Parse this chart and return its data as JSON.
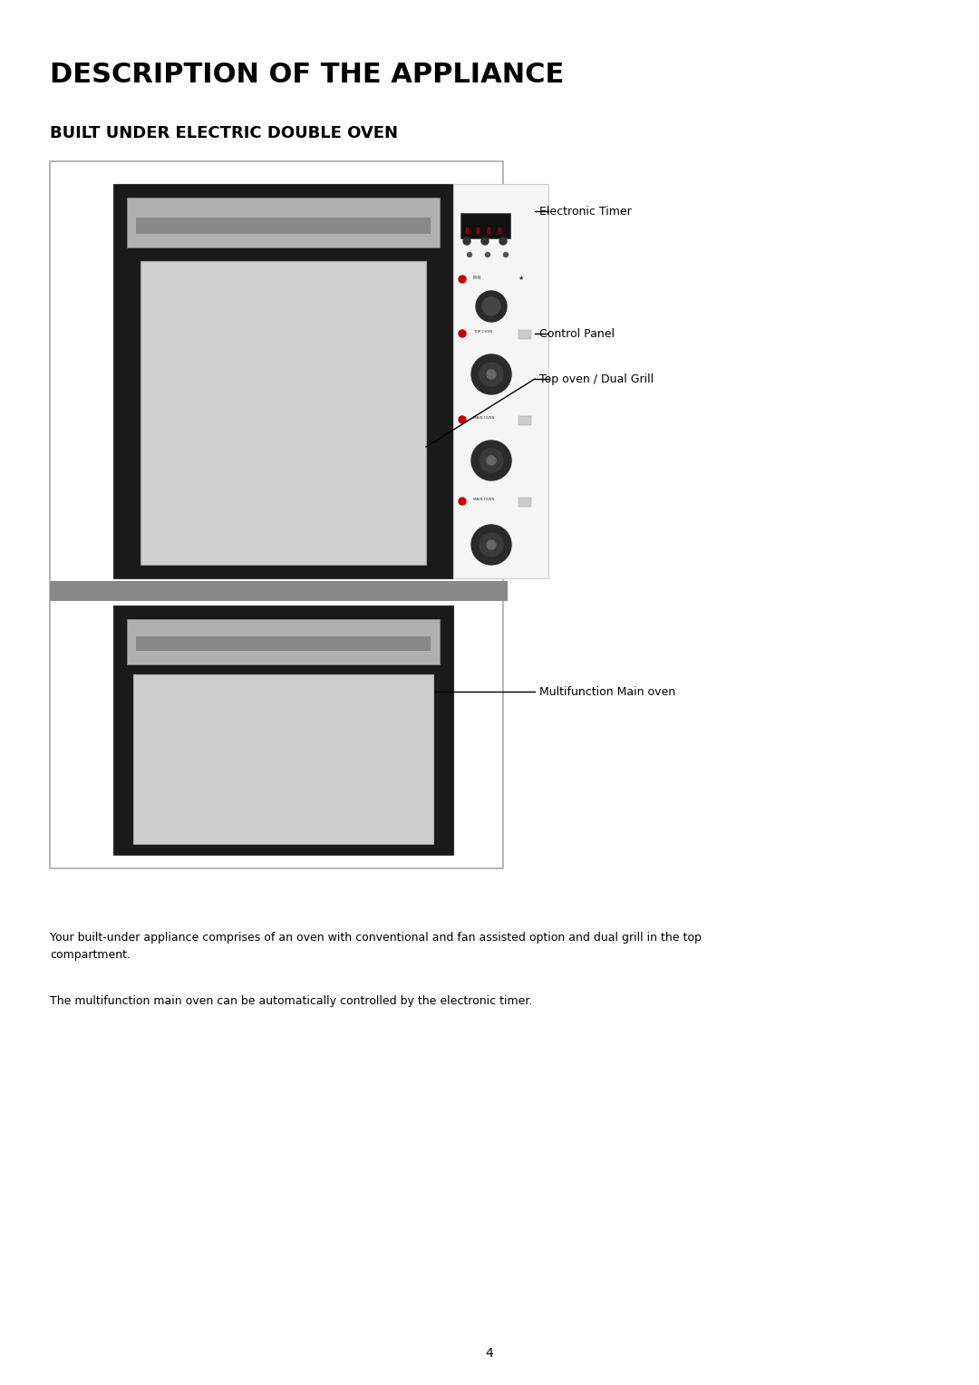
{
  "title": "DESCRIPTION OF THE APPLIANCE",
  "subtitle": "BUILT UNDER ELECTRIC DOUBLE OVEN",
  "title_fontsize": 22,
  "subtitle_fontsize": 13,
  "body_text1": "Your built-under appliance comprises of an oven with conventional and fan assisted option and dual grill in the top\ncompartment.",
  "body_text2": "The multifunction main oven can be automatically controlled by the electronic timer.",
  "page_number": "4",
  "labels": {
    "electronic_timer": "Electronic Timer",
    "control_panel": "Control Panel",
    "top_oven": "Top oven / Dual Grill",
    "main_oven": "Multifunction Main oven"
  },
  "colors": {
    "background": "#ffffff",
    "oven_black": "#1a1a1a",
    "oven_gray": "#c0c0c0",
    "oven_light_gray": "#d8d8d8",
    "panel_white": "#f0f0f0",
    "outer_border": "#e0e0e0",
    "handle_dark": "#888888",
    "separator_bar": "#888888",
    "display_red": "#cc0000",
    "knob_dark": "#2a2a2a",
    "knob_highlight": "#555555",
    "text_black": "#000000",
    "line_color": "#000000"
  }
}
